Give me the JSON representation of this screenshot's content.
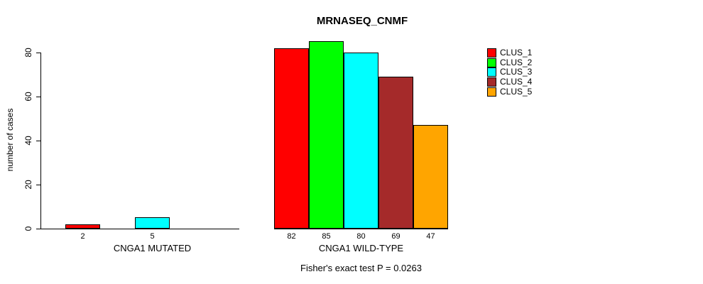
{
  "chart_data": {
    "type": "bar",
    "title": "MRNASEQ_CNMF",
    "ylabel": "number of cases",
    "xlabel": "",
    "ylim": [
      0,
      85
    ],
    "yticks": [
      0,
      20,
      40,
      60,
      80
    ],
    "grid": false,
    "legend_position": "right",
    "series_names": [
      "CLUS_1",
      "CLUS_2",
      "CLUS_3",
      "CLUS_4",
      "CLUS_5"
    ],
    "series_colors": [
      "#FF0000",
      "#00FF00",
      "#00FFFF",
      "#A52A2A",
      "#FFA500"
    ],
    "groups": [
      {
        "label": "CNGA1 MUTATED",
        "values": [
          2,
          0,
          5,
          0,
          0
        ]
      },
      {
        "label": "CNGA1 WILD-TYPE",
        "values": [
          82,
          85,
          80,
          69,
          47
        ]
      }
    ],
    "shown_value_labels": [
      "2",
      "5",
      "82",
      "85",
      "80",
      "69",
      "47"
    ],
    "annotation": "Fisher's exact test P = 0.0263"
  },
  "legend": {
    "items": [
      {
        "label": "CLUS_1",
        "color": "#FF0000"
      },
      {
        "label": "CLUS_2",
        "color": "#00FF00"
      },
      {
        "label": "CLUS_3",
        "color": "#00FFFF"
      },
      {
        "label": "CLUS_4",
        "color": "#A52A2A"
      },
      {
        "label": "CLUS_5",
        "color": "#FFA500"
      }
    ]
  }
}
